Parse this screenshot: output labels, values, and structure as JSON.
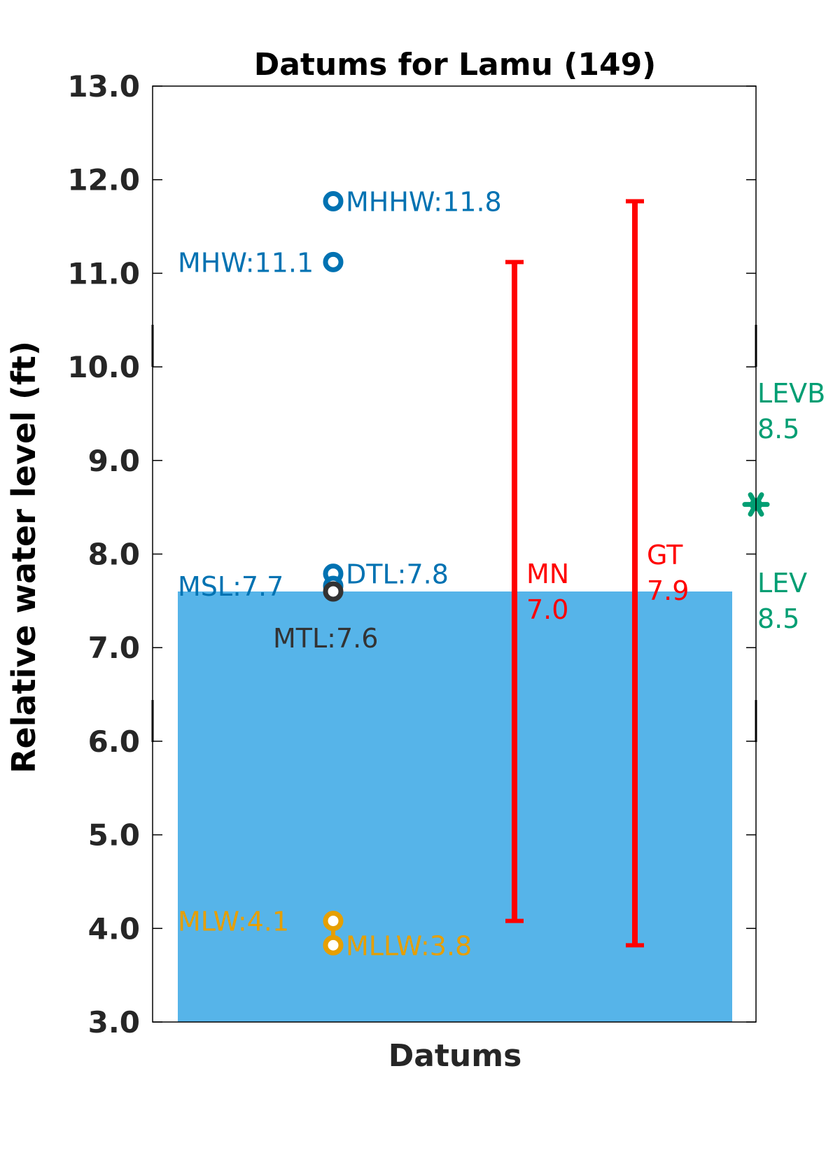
{
  "chart_data": {
    "type": "datum",
    "title": "Datums for Lamu (149)",
    "xlabel": "Datums",
    "ylabel": "Relative water level (ft)",
    "ylim": [
      3.0,
      13.0
    ],
    "yticks": [
      3.0,
      4.0,
      5.0,
      6.0,
      7.0,
      8.0,
      9.0,
      10.0,
      11.0,
      12.0,
      13.0
    ],
    "ytick_labels": [
      "3.0",
      "4.0",
      "5.0",
      "6.0",
      "7.0",
      "8.0",
      "9.0",
      "10.0",
      "11.0",
      "12.0",
      "13.0"
    ],
    "bar": {
      "value": 7.6,
      "color": "#56b4e9"
    },
    "datums": [
      {
        "name": "MHHW",
        "value": 11.77,
        "label": "MHHW:11.8",
        "color": "#0072b2",
        "label_side": "right"
      },
      {
        "name": "MHW",
        "value": 11.12,
        "label": "MHW:11.1",
        "color": "#0072b2",
        "label_side": "left"
      },
      {
        "name": "DTL",
        "value": 7.79,
        "label": "DTL:7.8",
        "color": "#0072b2",
        "label_side": "right"
      },
      {
        "name": "MSL",
        "value": 7.66,
        "label": "MSL:7.7",
        "color": "#0072b2",
        "label_side": "left"
      },
      {
        "name": "MTL",
        "value": 7.6,
        "label": "MTL:7.6",
        "color": "#333333",
        "label_side": "below"
      },
      {
        "name": "MLW",
        "value": 4.08,
        "label": "MLW:4.1",
        "color": "#e69f00",
        "label_side": "left"
      },
      {
        "name": "MLLW",
        "value": 3.82,
        "label": "MLLW:3.8",
        "color": "#e69f00",
        "label_side": "right"
      }
    ],
    "ranges": [
      {
        "name": "MN",
        "low": 4.08,
        "high": 11.12,
        "label_line1": "MN",
        "label_line2": "7.0",
        "color": "#ff0000"
      },
      {
        "name": "GT",
        "low": 3.82,
        "high": 11.77,
        "label_line1": "GT",
        "label_line2": "7.9",
        "color": "#ff0000"
      }
    ],
    "extremes": {
      "value": 8.53,
      "color": "#009e73",
      "upper_label_line1": "LEVB",
      "upper_label_line2": "8.5",
      "lower_label_line1": "LEV",
      "lower_label_line2": "8.5"
    },
    "grid": false,
    "legend": "none"
  }
}
